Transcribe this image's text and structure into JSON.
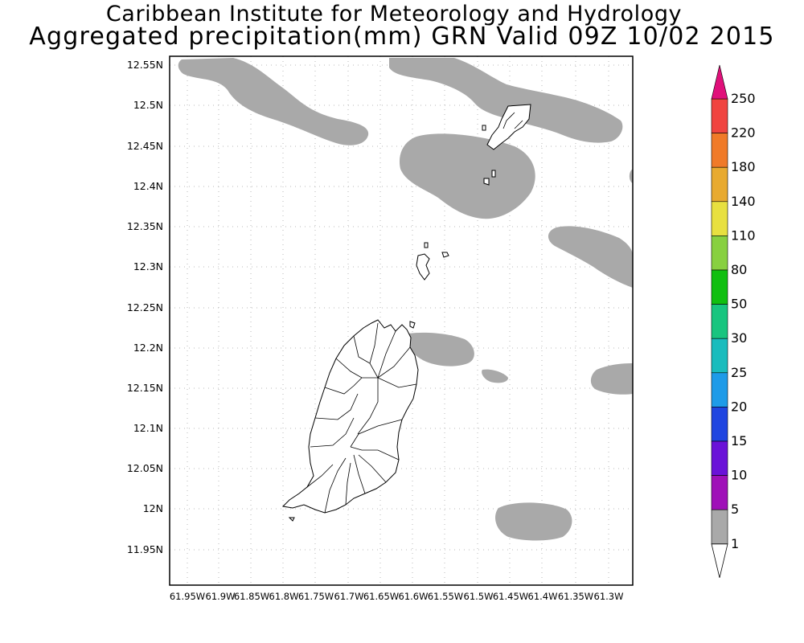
{
  "header": {
    "institute": "Caribbean Institute for Meteorology and Hydrology",
    "product": "Aggregated precipitation(mm) GRN Valid 09Z 10/02 2015"
  },
  "map": {
    "region": "GRN",
    "lat_labels": [
      "12.55N",
      "12.5N",
      "12.45N",
      "12.4N",
      "12.35N",
      "12.3N",
      "12.25N",
      "12.2N",
      "12.15N",
      "12.1N",
      "12.05N",
      "12N",
      "11.95N"
    ],
    "lon_labels": [
      "61.95W",
      "61.9W",
      "61.85W",
      "61.8W",
      "61.75W",
      "61.7W",
      "61.65W",
      "61.6W",
      "61.55W",
      "61.5W",
      "61.45W",
      "61.4W",
      "61.35W",
      "61.3W"
    ],
    "grid": true,
    "features": [
      "Grenada",
      "Carriacou",
      "Petite Martinique",
      "Grenadines islets"
    ]
  },
  "legend": {
    "unit": "mm",
    "levels": [
      "1",
      "5",
      "10",
      "15",
      "20",
      "25",
      "30",
      "50",
      "80",
      "110",
      "140",
      "180",
      "220",
      "250"
    ],
    "colors": [
      "#ffffff",
      "#a9a9a9",
      "#9f10b8",
      "#6a12d8",
      "#1f45e0",
      "#1e9be8",
      "#1abcbd",
      "#18c57f",
      "#10bf10",
      "#88d040",
      "#e8e040",
      "#e8aa30",
      "#f07a28",
      "#f04440",
      "#e0107a"
    ]
  }
}
